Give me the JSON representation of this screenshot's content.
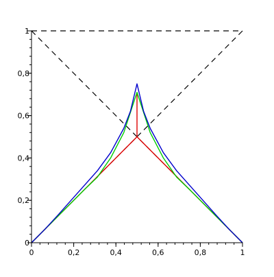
{
  "chart_data": {
    "type": "line",
    "title": "",
    "xlabel": "",
    "ylabel": "",
    "xlim": [
      0,
      1
    ],
    "ylim": [
      0,
      1
    ],
    "grid": false,
    "legend": "none",
    "x_ticks": [
      {
        "value": 0,
        "label": "0"
      },
      {
        "value": 0.2,
        "label": "0,2"
      },
      {
        "value": 0.4,
        "label": "0,4"
      },
      {
        "value": 0.6,
        "label": "0,6"
      },
      {
        "value": 0.8,
        "label": "0,8"
      },
      {
        "value": 1,
        "label": "1"
      }
    ],
    "y_ticks": [
      {
        "value": 0,
        "label": "0"
      },
      {
        "value": 0.2,
        "label": "0,2"
      },
      {
        "value": 0.4,
        "label": "0,4"
      },
      {
        "value": 0.6,
        "label": "0,6"
      },
      {
        "value": 0.8,
        "label": "0,8"
      },
      {
        "value": 1,
        "label": "1"
      }
    ],
    "series": [
      {
        "color": "#000000",
        "style": "dashed",
        "x": [
          0,
          1,
          0
        ],
        "y": [
          1,
          1,
          0
        ]
      },
      {
        "color": "#000000",
        "style": "dashed",
        "x": [
          0,
          1
        ],
        "y": [
          1,
          0
        ]
      },
      {
        "color": "#dd0000",
        "style": "solid",
        "x": [
          0,
          0.125,
          0.25,
          0.5,
          0.75,
          0.875,
          1
        ],
        "y": [
          0,
          0.125,
          0.25,
          0.5,
          0.25,
          0.125,
          0
        ]
      },
      {
        "color": "#dd0000",
        "style": "solid",
        "x": [
          0.5,
          0.5
        ],
        "y": [
          0.5,
          0.7
        ]
      },
      {
        "color": "#00cc00",
        "style": "solid",
        "x": [
          0,
          0.125,
          0.25,
          0.3125,
          0.375,
          0.4375,
          0.5,
          0.5625,
          0.625,
          0.6875,
          0.75,
          0.875,
          1
        ],
        "y": [
          0,
          0.125,
          0.25,
          0.31,
          0.4,
          0.52,
          0.71,
          0.52,
          0.4,
          0.31,
          0.25,
          0.125,
          0
        ]
      },
      {
        "color": "#0000cc",
        "style": "solid",
        "x": [
          0,
          0.0625,
          0.125,
          0.1875,
          0.25,
          0.3125,
          0.375,
          0.4375,
          0.46875,
          0.5,
          0.53125,
          0.5625,
          0.625,
          0.6875,
          0.75,
          0.8125,
          0.875,
          0.9375,
          1
        ],
        "y": [
          0,
          0.0625,
          0.13,
          0.2,
          0.27,
          0.34,
          0.425,
          0.54,
          0.62,
          0.75,
          0.62,
          0.54,
          0.425,
          0.34,
          0.27,
          0.2,
          0.13,
          0.0625,
          0
        ]
      }
    ]
  }
}
